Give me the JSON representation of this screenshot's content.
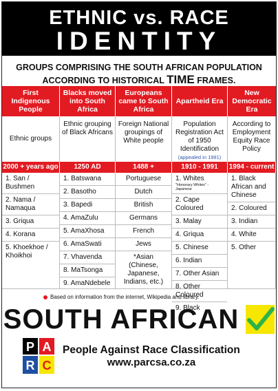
{
  "header": {
    "line1": "ETHNIC vs. RACE",
    "line2": "IDENTITY"
  },
  "subtitle": {
    "line1": "GROUPS COMPRISING THE SOUTH AFRICAN POPULATION",
    "line2_prefix": "ACCORDING TO HISTORICAL",
    "line2_emphasis": "TIME",
    "line2_suffix": "FRAMES."
  },
  "columns": [
    {
      "header": "First Indigenous People",
      "description": "Ethnic groups",
      "date": "2000 + years ago",
      "items": [
        "1. San / Bushmen",
        "2. Nama / Namaqua",
        "3. Griqua",
        "4. Korana",
        "5. Khoekhoe / Khoikhoi"
      ]
    },
    {
      "header": "Blacks moved into South Africa",
      "description": "Ethnic grouping of Black Africans",
      "date": "1250 AD",
      "items": [
        "1. Batswana",
        "2. Basotho",
        "3. Bapedi",
        "4. AmaZulu",
        "5. AmaXhosa",
        "6. AmaSwati",
        "7. Vhavenda",
        "8. MaTsonga",
        "9. AmaNdebele"
      ]
    },
    {
      "header": "Europeans came to South Africa",
      "description": "Foreign National groupings of White people",
      "date": "1488 +",
      "items": [
        "Portuguese",
        "Dutch",
        "British",
        "Germans",
        "French",
        "Jews",
        "*Asian (Chinese, Japanese, Indians, etc.)"
      ]
    },
    {
      "header": "Apartheid Era",
      "description": "Population Registration Act of 1950 Identification",
      "description_note": "(appealed in 1991)",
      "date": "1910 - 1991",
      "items": [
        "1. Whites",
        "2. Cape Coloured",
        "3. Malay",
        "4. Griqua",
        "5. Chinese",
        "6. Indian",
        "7. Other Asian",
        "8. Other Coloured",
        "9. Black"
      ],
      "items_note": "\"Honorary Whites\" - Japanese"
    },
    {
      "header": "New Democratic Era",
      "description": "According to Employment Equity Race Policy",
      "date": "1994 - current",
      "items": [
        "1. Black African and Chinese",
        "2. Coloured",
        "3. Indian",
        "4. White",
        "5. Other"
      ]
    }
  ],
  "footnote": "Based on information from the internet, Wikipedia and library.",
  "slogan": "SOUTH AFRICAN",
  "org": {
    "logo_letters": "PARC",
    "name": "People Against Race Classification",
    "url": "www.parcsa.co.za"
  },
  "colors": {
    "red": "#e21b22",
    "black": "#000000",
    "yellow": "#f6e600",
    "green": "#2db34a",
    "blue": "#1f4fa3"
  }
}
